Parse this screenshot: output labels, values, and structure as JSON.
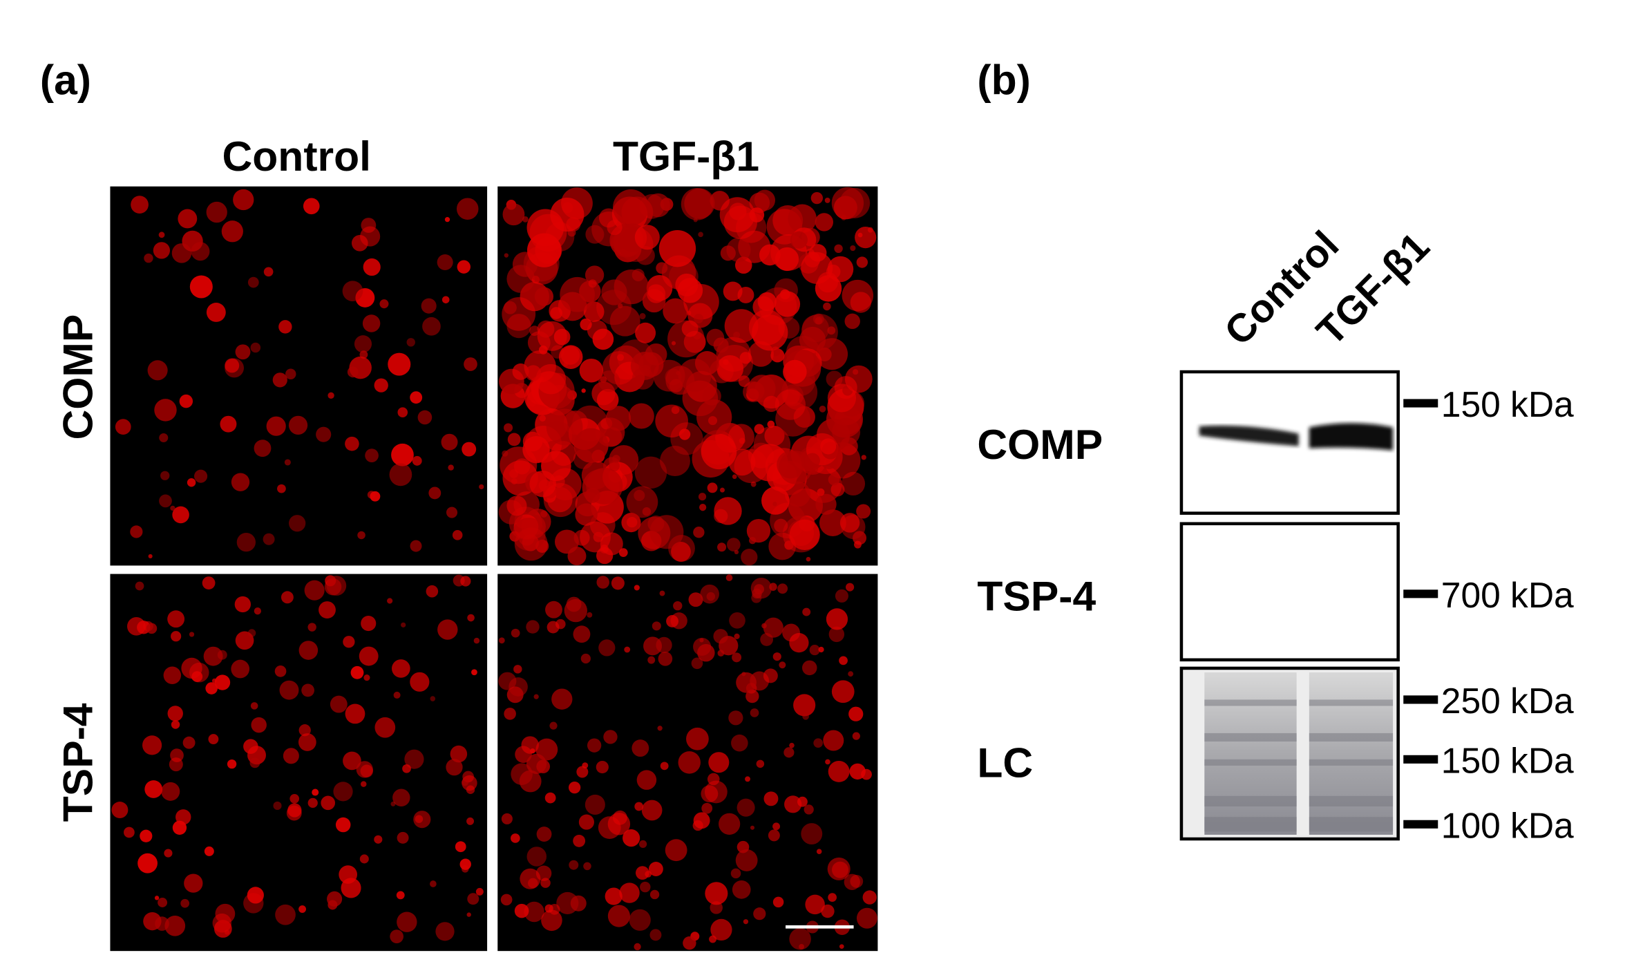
{
  "panel_a": {
    "label": "(a)",
    "columns": [
      "Control",
      "TGF-β1"
    ],
    "rows": [
      "COMP",
      "TSP-4"
    ]
  },
  "panel_b": {
    "label": "(b)",
    "lanes": [
      "Control",
      "TGF-β1"
    ],
    "blots": [
      {
        "label": "COMP",
        "markers": [
          "150 kDa"
        ]
      },
      {
        "label": "TSP-4",
        "markers": [
          "700 kDa"
        ]
      },
      {
        "label": "LC",
        "markers": [
          "250 kDa",
          "150 kDa",
          "100 kDa"
        ]
      }
    ]
  }
}
